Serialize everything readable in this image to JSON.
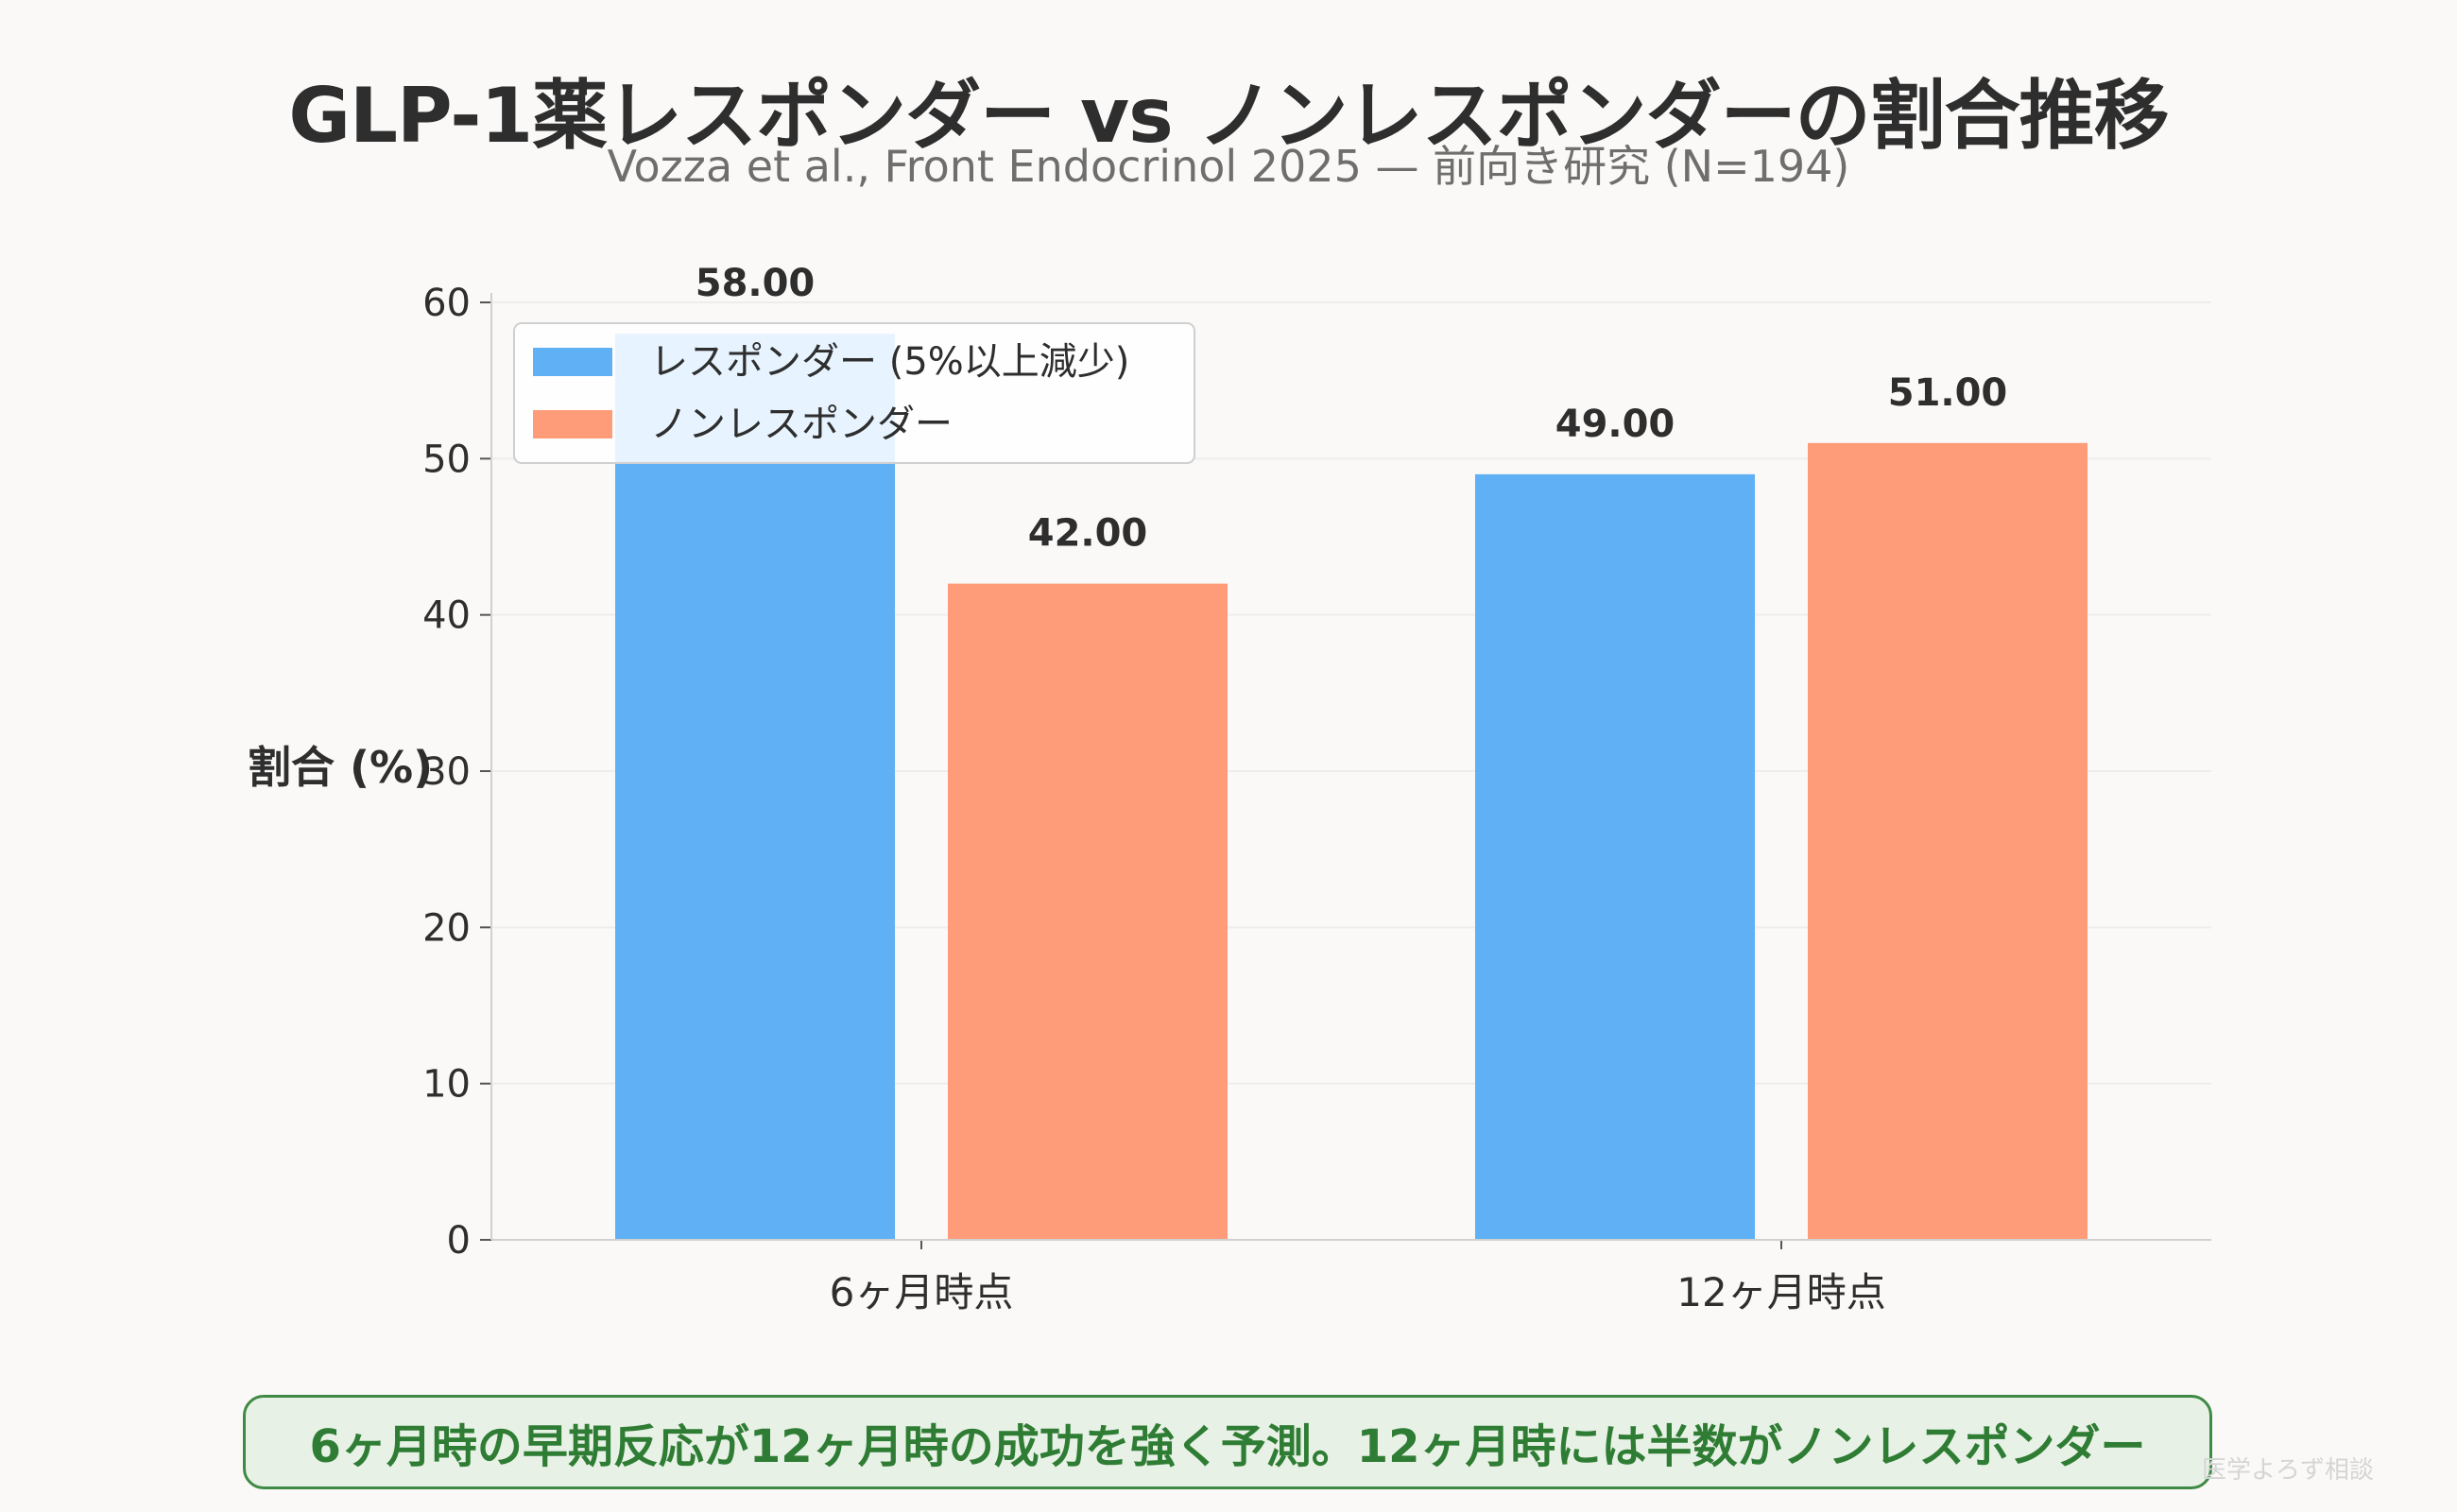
{
  "title": "GLP-1薬レスポンダー vs ノンレスポンダーの割合推移",
  "subtitle": "Vozza et al., Front Endocrinol 2025 — 前向き研究 (N=194)",
  "conclusion": "6ヶ月時の早期反応が12ヶ月時の成功を強く予測。12ヶ月時には半数がノンレスポンダー",
  "watermark": "医学よろず相談",
  "colors": {
    "responder": "#5fb0f4",
    "nonresponder": "#fe9b78",
    "text": "#2e2e2e",
    "conclusion_text": "#2f7d34",
    "conclusion_border": "#3f8a45",
    "conclusion_bg": "#e8f1e6"
  },
  "chart_data": {
    "type": "bar",
    "categories": [
      "6ヶ月時点",
      "12ヶ月時点"
    ],
    "series": [
      {
        "name": "レスポンダー (5%以上減少)",
        "values": [
          58,
          49
        ],
        "labels": [
          "58.00",
          "49.00"
        ]
      },
      {
        "name": "ノンレスポンダー",
        "values": [
          42,
          51
        ],
        "labels": [
          "42.00",
          "51.00"
        ]
      }
    ],
    "ylabel": "割合 (%)",
    "xlabel": "",
    "ylim": [
      0,
      60
    ],
    "yticks": [
      0,
      10,
      20,
      30,
      40,
      50,
      60
    ],
    "legend_position": "top-left",
    "grid": true
  }
}
